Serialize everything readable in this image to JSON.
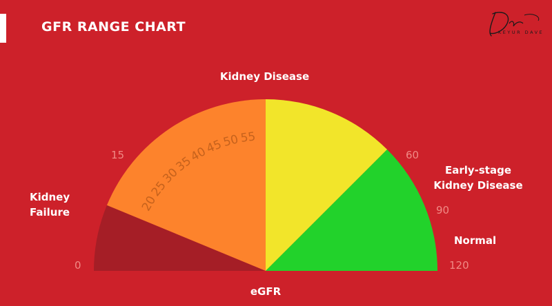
{
  "header": {
    "title": "GFR RANGE CHART",
    "logo_script": "Dr.",
    "logo_name": "KEYUR DAVE"
  },
  "chart_data": {
    "type": "gauge",
    "title": "GFR RANGE CHART",
    "xlabel": "eGFR",
    "range": [
      0,
      120
    ],
    "segments": [
      {
        "name": "Kidney Failure",
        "from": 0,
        "to": 15,
        "color": "#a51e26"
      },
      {
        "name": "Kidney Disease",
        "from": 15,
        "to": 60,
        "color": "#fd832c"
      },
      {
        "name": "Early-stage Kidney Disease",
        "from": 60,
        "to": 90,
        "color": "#f2e52a"
      },
      {
        "name": "Normal",
        "from": 90,
        "to": 120,
        "color": "#22d22b"
      }
    ],
    "boundary_ticks": [
      "0",
      "15",
      "60",
      "90",
      "120"
    ],
    "inner_ticks": [
      "20",
      "25",
      "30",
      "35",
      "40",
      "45",
      "50",
      "55"
    ]
  },
  "labels": {
    "kidney_failure_1": "Kidney",
    "kidney_failure_2": "Failure",
    "kidney_disease": "Kidney Disease",
    "early_stage_1": "Early-stage",
    "early_stage_2": "Kidney Disease",
    "normal": "Normal",
    "egfr": "eGFR"
  },
  "colors": {
    "background": "#cd212a",
    "boundary_tick_text": "#f08a85",
    "inner_tick_text": "#c6621c"
  }
}
